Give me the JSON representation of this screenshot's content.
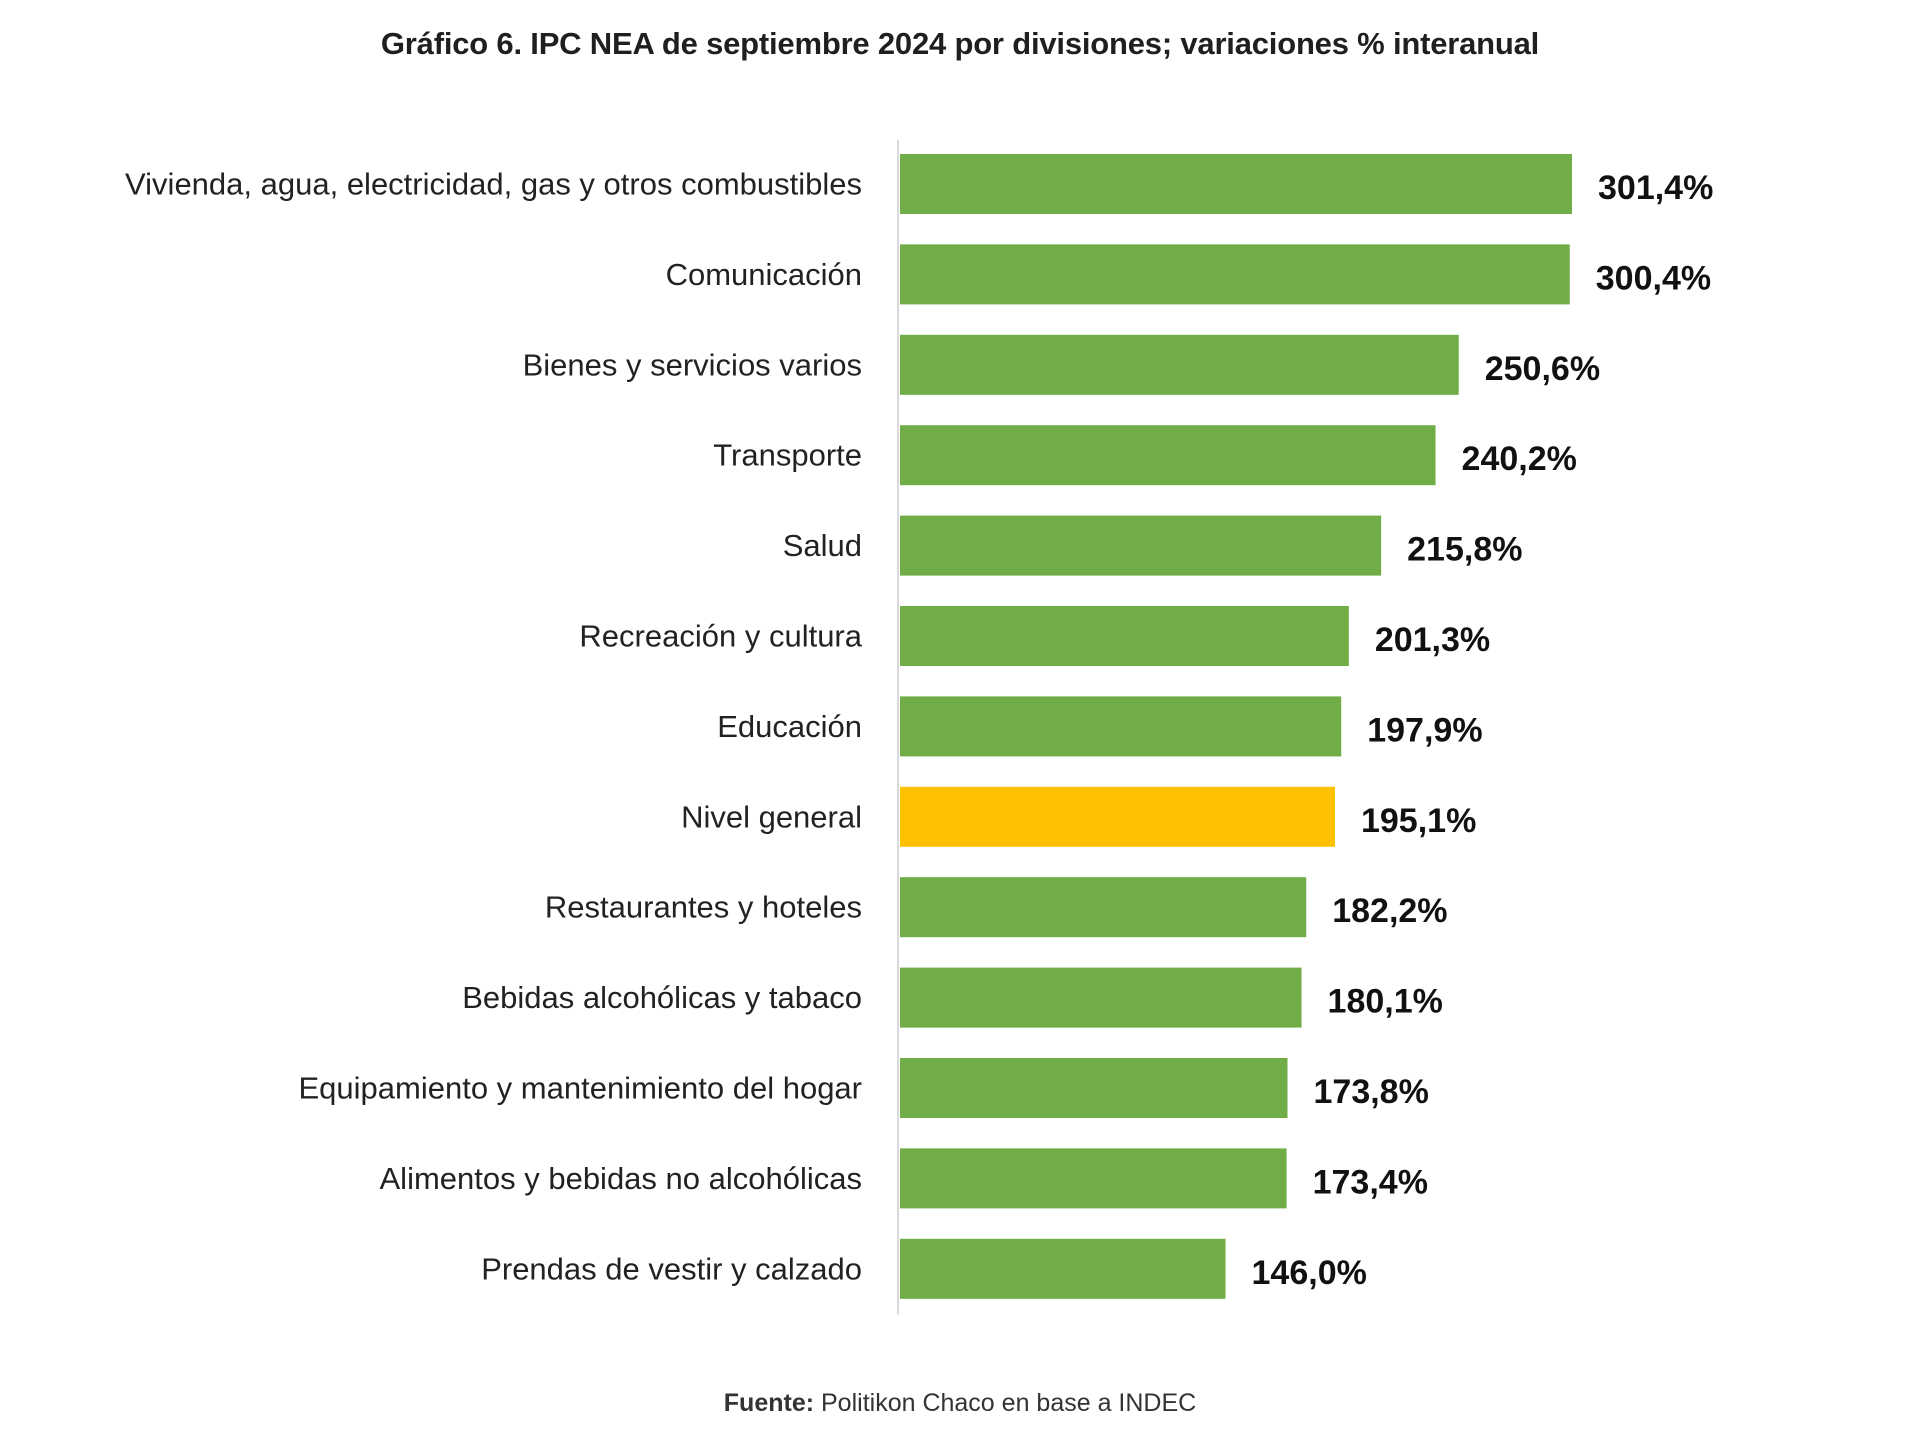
{
  "chart_data": {
    "type": "bar",
    "orientation": "horizontal",
    "title": "Gráfico 6. IPC NEA de septiembre 2024 por divisiones; variaciones % interanual",
    "categories": [
      "Vivienda, agua, electricidad, gas y otros combustibles",
      "Comunicación",
      "Bienes y servicios varios",
      "Transporte",
      "Salud",
      "Recreación y cultura",
      "Educación",
      "Nivel general",
      "Restaurantes y hoteles",
      "Bebidas alcohólicas y tabaco",
      "Equipamiento y mantenimiento del hogar",
      "Alimentos y bebidas no alcohólicas",
      "Prendas de vestir y calzado"
    ],
    "values": [
      301.4,
      300.4,
      250.6,
      240.2,
      215.8,
      201.3,
      197.9,
      195.1,
      182.2,
      180.1,
      173.8,
      173.4,
      146.0
    ],
    "data_labels": [
      "301,4%",
      "300,4%",
      "250,6%",
      "240,2%",
      "215,8%",
      "201,3%",
      "197,9%",
      "195,1%",
      "182,2%",
      "180,1%",
      "173,8%",
      "173,4%",
      "146,0%"
    ],
    "highlight_category": "Nivel general",
    "xlim": [
      0,
      301.4
    ],
    "grid": false,
    "legend": "none",
    "colors": {
      "bar": "#70ad47",
      "highlight": "#ffc000",
      "axis": "#d9d9d9",
      "text": "#222222"
    }
  },
  "source": {
    "label": "Fuente:",
    "text": " Politikon Chaco en base a INDEC"
  }
}
